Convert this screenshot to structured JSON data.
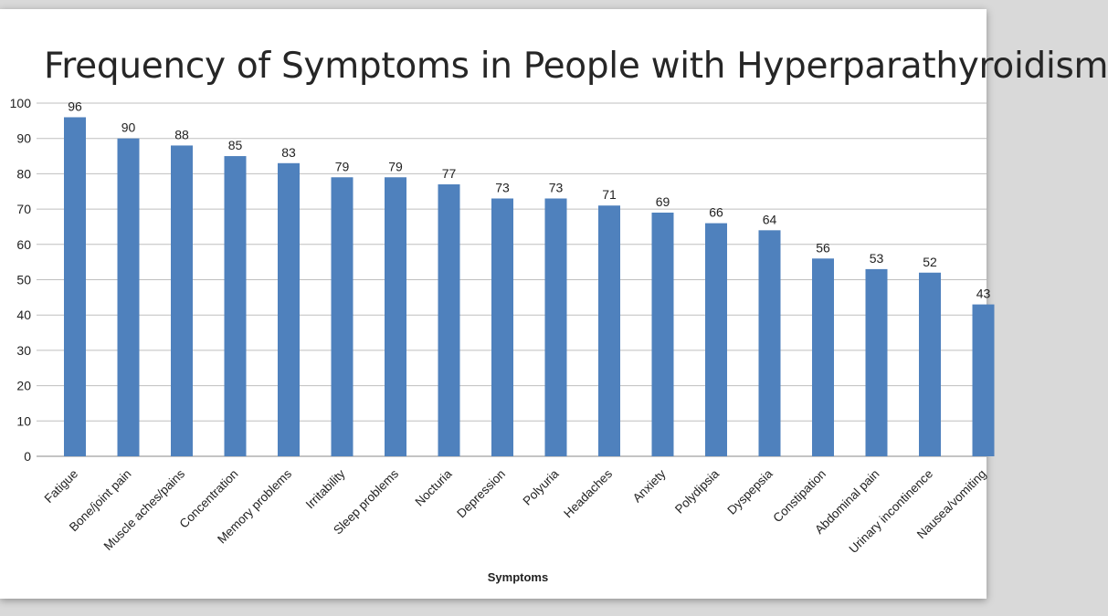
{
  "chart_data": {
    "type": "bar",
    "title": "Frequency of Symptoms in People with Hyperparathyroidism",
    "xlabel": "Symptoms",
    "ylabel": "",
    "ylim": [
      0,
      100
    ],
    "yticks": [
      0,
      10,
      20,
      30,
      40,
      50,
      60,
      70,
      80,
      90,
      100
    ],
    "grid": true,
    "bar_color": "#4f81bd",
    "categories": [
      "Fatigue",
      "Bone/joint pain",
      "Muscle aches/pains",
      "Concentration",
      "Memory problems",
      "Irritability",
      "Sleep problems",
      "Nocturia",
      "Depression",
      "Polyuria",
      "Headaches",
      "Anxiety",
      "Polydipsia",
      "Dyspepsia",
      "Constipation",
      "Abdominal pain",
      "Urinary incontinence",
      "Nausea/vomiting"
    ],
    "values": [
      96,
      90,
      88,
      85,
      83,
      79,
      79,
      77,
      73,
      73,
      71,
      69,
      66,
      64,
      56,
      53,
      52,
      43
    ]
  }
}
